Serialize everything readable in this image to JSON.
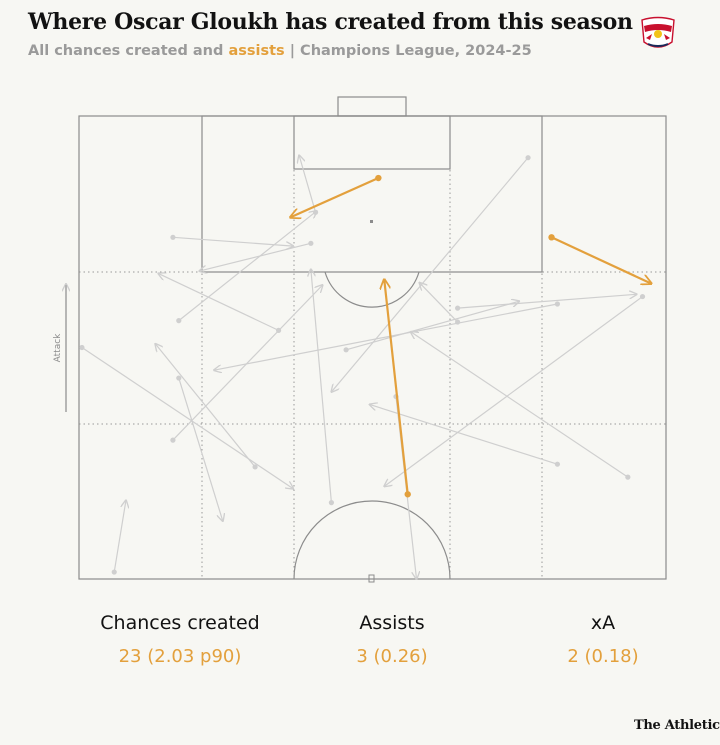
{
  "header": {
    "title": "Where Oscar Gloukh has created from this season",
    "subtitle_prefix": "All chances created and ",
    "subtitle_highlight": "assists",
    "subtitle_suffix": " | Champions League, 2024-25"
  },
  "club_logo": {
    "name": "red-bull-salzburg-crest",
    "text": "Red Bull SALZBURG"
  },
  "chart_data": {
    "type": "scatter",
    "attack_label": "Attack",
    "colors": {
      "chance": "#cfcfcf",
      "assist": "#e3a03c",
      "pitch_line": "#8c8c8c",
      "zone_line": "#9a9a9a"
    },
    "passes": [
      {
        "kind": "chance",
        "x": [
          1,
          1
        ],
        "y": [
          0,
          0
        ]
      },
      {
        "kind": "assist",
        "x": [
          56,
          52
        ],
        "y": [
          18.3,
          64.7
        ]
      },
      {
        "kind": "assist",
        "x": [
          51,
          36
        ],
        "y": [
          86.6,
          78.1
        ]
      },
      {
        "kind": "assist",
        "x": [
          80.5,
          97.5
        ],
        "y": [
          73.8,
          63.8
        ]
      }
    ],
    "chances": [
      [
        93.5,
        22.0,
        56.5,
        53.4
      ],
      [
        81.5,
        24.8,
        49.5,
        37.7
      ],
      [
        16,
        30.0,
        41.5,
        63.5
      ],
      [
        16,
        73.8,
        36.5,
        71.9
      ],
      [
        64.5,
        58.5,
        95,
        61.5
      ],
      [
        81.5,
        59.4,
        23.0,
        45.1
      ],
      [
        17,
        43.4,
        24.5,
        12.5
      ],
      [
        54,
        39.4,
        57.5,
        0.0
      ],
      [
        17,
        55.8,
        40.5,
        79.5
      ],
      [
        96,
        61.0,
        52,
        20.0
      ],
      [
        43,
        16.5,
        39.5,
        66.9
      ],
      [
        6,
        1.5,
        8,
        17.0
      ],
      [
        76.5,
        91.0,
        43,
        40.4
      ],
      [
        0.5,
        50.0,
        36.5,
        19.5
      ],
      [
        34,
        53.7,
        13.5,
        66.0
      ],
      [
        39.5,
        72.5,
        20.5,
        66.5
      ],
      [
        40.3,
        79.2,
        37.5,
        91.5
      ],
      [
        45.5,
        49.5,
        75,
        60.0
      ],
      [
        64.5,
        55.5,
        58,
        64.0
      ],
      [
        30,
        24.2,
        13,
        50.8
      ]
    ]
  },
  "stats": [
    {
      "label": "Chances created",
      "value": "23 (2.03 p90)"
    },
    {
      "label": "Assists",
      "value": "3 (0.26)"
    },
    {
      "label": "xA",
      "value": "2 (0.18)"
    }
  ],
  "footer": {
    "brand": "The Athletic"
  }
}
